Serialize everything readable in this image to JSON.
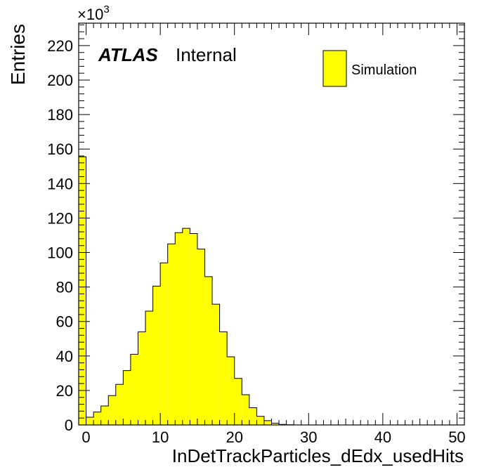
{
  "chart_data": {
    "type": "bar",
    "title": "",
    "xlabel": "InDetTrackParticles_dEdx_usedHits",
    "ylabel": "Entries",
    "y_multiplier": "×10",
    "y_multiplier_exp": "3",
    "xlim": [
      -1,
      51
    ],
    "ylim": [
      0,
      233
    ],
    "x_ticks": [
      0,
      10,
      20,
      30,
      40,
      50
    ],
    "y_ticks": [
      0,
      20,
      40,
      60,
      80,
      100,
      120,
      140,
      160,
      180,
      200,
      220
    ],
    "bin_width": 1,
    "bin_low_edges": [
      -1,
      0,
      1,
      2,
      3,
      4,
      5,
      6,
      7,
      8,
      9,
      10,
      11,
      12,
      13,
      14,
      15,
      16,
      17,
      18,
      19,
      20,
      21,
      22,
      23,
      24,
      25,
      26,
      27,
      28,
      29,
      30,
      31,
      32,
      33,
      34,
      35,
      36,
      37,
      38,
      39,
      40,
      41,
      42,
      43,
      44,
      45,
      46,
      47,
      48,
      49,
      50
    ],
    "series": [
      {
        "name": "Simulation",
        "color": "#ffff00",
        "values": [
          155.5,
          4.5,
          7.5,
          11,
          17,
          23.5,
          31.5,
          41,
          54,
          66,
          80.5,
          94,
          105,
          111.5,
          114,
          111,
          102,
          86,
          70,
          54,
          39.5,
          27,
          17.5,
          10,
          5,
          2.5,
          1,
          0.3,
          0.1,
          0,
          0,
          0,
          0,
          0,
          0,
          0,
          0,
          0,
          0,
          0,
          0,
          0,
          0,
          0,
          0,
          0,
          0,
          0,
          0,
          0,
          0,
          0
        ]
      }
    ],
    "legend": {
      "placement": "top-right",
      "entries": [
        "Simulation"
      ]
    },
    "annotations": {
      "experiment": "ATLAS",
      "status": "Internal"
    },
    "grid": false
  }
}
